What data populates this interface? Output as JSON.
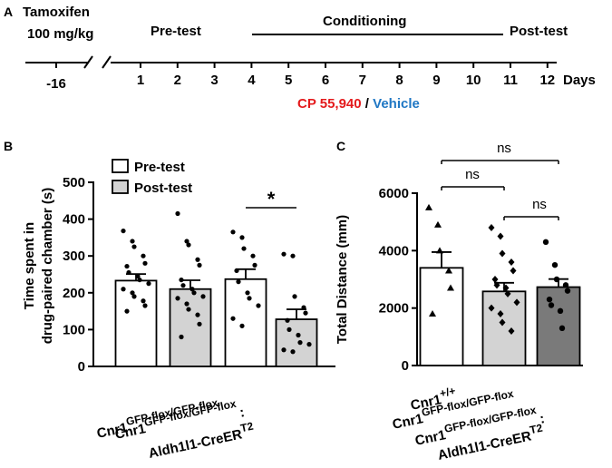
{
  "colors": {
    "red": "#e41a1c",
    "blue": "#1f77c4",
    "light_gray": "#d3d3d3",
    "dark_gray": "#7a7a7a",
    "mid_gray": "#bdbdbd"
  },
  "panel_a": {
    "label": "A",
    "tamoxifen": "Tamoxifen",
    "dose": "100 mg/kg",
    "pretest": "Pre-test",
    "conditioning": "Conditioning",
    "posttest": "Post-test",
    "days_label": "Days",
    "first_day": "-16",
    "days": [
      {
        "label": "1",
        "color": "black"
      },
      {
        "label": "2",
        "color": "black"
      },
      {
        "label": "3",
        "color": "black"
      },
      {
        "label": "4",
        "color": "red"
      },
      {
        "label": "5",
        "color": "blue"
      },
      {
        "label": "6",
        "color": "red"
      },
      {
        "label": "7",
        "color": "blue"
      },
      {
        "label": "8",
        "color": "red"
      },
      {
        "label": "9",
        "color": "blue"
      },
      {
        "label": "10",
        "color": "red"
      },
      {
        "label": "11",
        "color": "blue"
      },
      {
        "label": "12",
        "color": "black"
      }
    ],
    "drug": "CP 55,940",
    "slash": " / ",
    "vehicle": "Vehicle"
  },
  "chart_data": [
    {
      "type": "bar",
      "panel": "B",
      "ylabel_line1": "Time spent in",
      "ylabel_line2": "drug-paired chamber (s)",
      "ylim": [
        0,
        500
      ],
      "yticks": [
        0,
        100,
        200,
        300,
        400,
        500
      ],
      "legend": [
        "Pre-test",
        "Post-test"
      ],
      "legend_position": "top",
      "groups": [
        {
          "main": "Cnr1",
          "sup": "GFP-flox/GFP-flox",
          "line2": "",
          "line2_sup": ""
        },
        {
          "main": "Cnr1",
          "sup": "GFP-flox/GFP-flox",
          "line2": "Aldh1l1-CreER",
          "line2_sup": "T2",
          "colon": ":"
        }
      ],
      "series": [
        {
          "name": "Pre-test",
          "values": [
            233,
            237
          ],
          "sem": [
            18,
            27
          ]
        },
        {
          "name": "Post-test",
          "values": [
            210,
            128
          ],
          "sem": [
            24,
            27
          ]
        }
      ],
      "points": [
        [
          368,
          340,
          325,
          300,
          280,
          272,
          255,
          245,
          235,
          225,
          210,
          200,
          190,
          178,
          165,
          150
        ],
        [
          415,
          340,
          330,
          290,
          275,
          235,
          220,
          210,
          200,
          190,
          185,
          170,
          155,
          140,
          115,
          80
        ],
        [
          365,
          350,
          320,
          300,
          275,
          260,
          230,
          200,
          185,
          165,
          130,
          110
        ],
        [
          305,
          300,
          190,
          160,
          145,
          125,
          100,
          85,
          65,
          60,
          45,
          40
        ]
      ],
      "significance": "*"
    },
    {
      "type": "bar",
      "panel": "C",
      "ylabel": "Total Distance (mm)",
      "ylim": [
        0,
        6000
      ],
      "yticks": [
        0,
        2000,
        4000,
        6000
      ],
      "groups": [
        {
          "main": "Cnr1",
          "sup": "+/+"
        },
        {
          "main": "Cnr1",
          "sup": "GFP-flox/GFP-flox"
        },
        {
          "main": "Cnr1",
          "sup": "GFP-flox/GFP-flox",
          "colon": ":",
          "line2": "Aldh1l1-CreER",
          "line2_sup": "T2"
        }
      ],
      "values": [
        3400,
        2580,
        2730
      ],
      "sem": [
        550,
        300,
        280
      ],
      "points": [
        [
          5500,
          4900,
          4000,
          3300,
          2700,
          1800
        ],
        [
          4800,
          4500,
          3900,
          3600,
          3300,
          3000,
          2800,
          2700,
          2500,
          2200,
          2000,
          1800,
          1500,
          1200
        ],
        [
          4300,
          3500,
          3000,
          2800,
          2600,
          2300,
          2100,
          1900,
          1300
        ]
      ],
      "comparisons": [
        {
          "from": 0,
          "to": 1,
          "label": "ns"
        },
        {
          "from": 1,
          "to": 2,
          "label": "ns"
        },
        {
          "from": 0,
          "to": 2,
          "label": "ns"
        }
      ]
    }
  ]
}
